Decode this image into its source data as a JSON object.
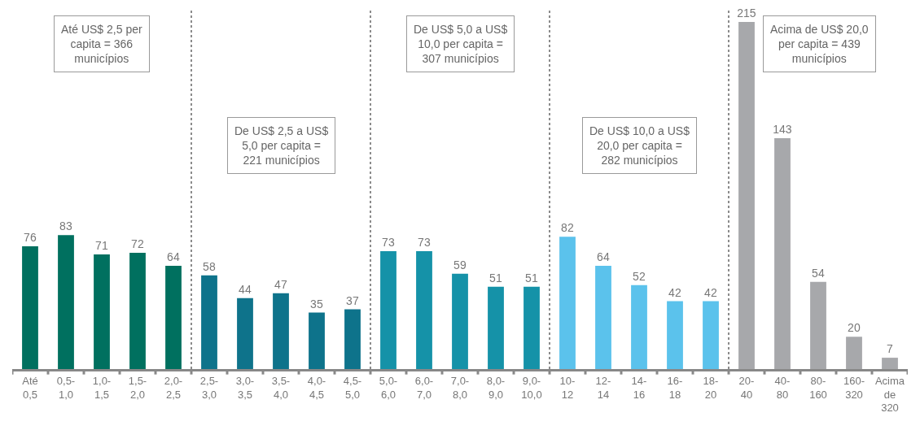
{
  "chart_data": {
    "type": "bar",
    "categories": [
      "Até 0,5",
      "0,5-1,0",
      "1,0-1,5",
      "1,5-2,0",
      "2,0-2,5",
      "2,5-3,0",
      "3,0-3,5",
      "3,5-4,0",
      "4,0-4,5",
      "4,5-5,0",
      "5,0-6,0",
      "6,0-7,0",
      "7,0-8,0",
      "8,0-9,0",
      "9,0-10,0",
      "10-12",
      "12-14",
      "14-16",
      "16-18",
      "18-20",
      "20-40",
      "40-80",
      "80-160",
      "160-320",
      "Acima de 320"
    ],
    "values": [
      76,
      83,
      71,
      72,
      64,
      58,
      44,
      47,
      35,
      37,
      73,
      73,
      59,
      51,
      51,
      82,
      64,
      52,
      42,
      42,
      215,
      143,
      54,
      20,
      7
    ],
    "colors": [
      "#00705f",
      "#00705f",
      "#00705f",
      "#00705f",
      "#00705f",
      "#0e738b",
      "#0e738b",
      "#0e738b",
      "#0e738b",
      "#0e738b",
      "#1592a8",
      "#1592a8",
      "#1592a8",
      "#1592a8",
      "#1592a8",
      "#5bc2ec",
      "#5bc2ec",
      "#5bc2ec",
      "#5bc2ec",
      "#5bc2ec",
      "#a7a8ab",
      "#a7a8ab",
      "#a7a8ab",
      "#a7a8ab",
      "#a7a8ab"
    ],
    "data_labels": true,
    "annotations": [
      "Até US$ 2,5 per capita = 366 municípios",
      "De US$ 2,5 a US$ 5,0 per capita = 221 municípios",
      "De US$ 5,0 a US$ 10,0 per capita = 307 municípios",
      "De US$ 10,0 a US$ 20,0 per capita = 282 municípios",
      "Acima de US$ 20,0 per capita = 439 municípios"
    ],
    "legend": false
  }
}
